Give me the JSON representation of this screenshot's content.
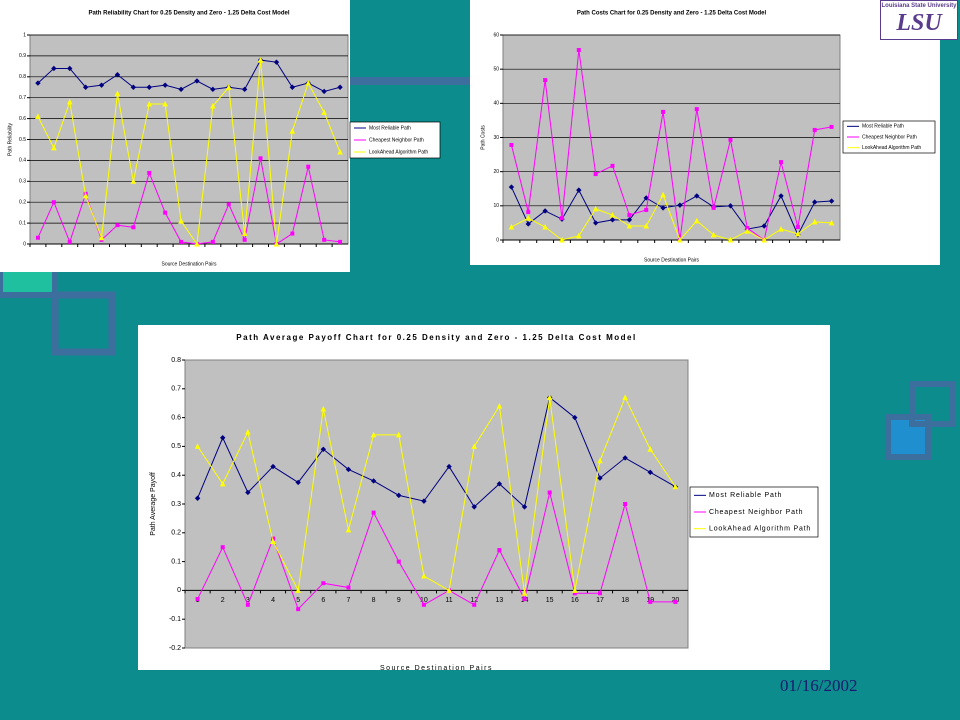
{
  "logo": {
    "university": "Louisiana State University",
    "initials": "LSU"
  },
  "footer_date": "01/16/2002",
  "chart_data": [
    {
      "type": "line",
      "title": "Path Reliability Chart for 0.25 Density and Zero - 1.25 Delta Cost Model",
      "xlabel": "Source Destination Pairs",
      "ylabel": "Path Reliability",
      "ylim": [
        0,
        1
      ],
      "yticks": [
        0,
        0.1,
        0.2,
        0.3,
        0.4,
        0.5,
        0.6,
        0.7,
        0.8,
        0.9,
        1
      ],
      "grid": true,
      "series": [
        {
          "name": "Most Reliable Path",
          "color": "#000080",
          "values": [
            0.77,
            0.84,
            0.84,
            0.75,
            0.76,
            0.81,
            0.75,
            0.75,
            0.76,
            0.74,
            0.78,
            0.74,
            0.75,
            0.74,
            0.88,
            0.87,
            0.75,
            0.77,
            0.73,
            0.75
          ]
        },
        {
          "name": "Cheapest Neighbor Path",
          "color": "#ff00ff",
          "values": [
            0.03,
            0.2,
            0.01,
            0.24,
            0.02,
            0.09,
            0.08,
            0.34,
            0.15,
            0.01,
            0,
            0.01,
            0.19,
            0.02,
            0.41,
            0,
            0.05,
            0.37,
            0.02,
            0.01
          ]
        },
        {
          "name": "LookAhead Algorithm Path",
          "color": "#ffff00",
          "values": [
            0.61,
            0.46,
            0.68,
            0.23,
            0.03,
            0.72,
            0.3,
            0.67,
            0.67,
            0.11,
            0,
            0.66,
            0.75,
            0.05,
            0.88,
            0,
            0.54,
            0.77,
            0.63,
            0.44
          ]
        }
      ]
    },
    {
      "type": "line",
      "title": "Path Costs Chart for 0.25 Density and Zero - 1.25 Delta Cost Model",
      "xlabel": "Source Destination Pairs",
      "ylabel": "Path Costs",
      "ylim": [
        0,
        60
      ],
      "yticks": [
        0,
        10,
        20,
        30,
        40,
        50,
        60
      ],
      "grid": true,
      "series": [
        {
          "name": "Most Reliable Path",
          "color": "#000080",
          "values": [
            15.5,
            4.7,
            8.5,
            6.1,
            14.6,
            5,
            5.9,
            5.9,
            12.3,
            9.4,
            10.2,
            12.9,
            9.7,
            10,
            3.2,
            4.1,
            12.9,
            1.5,
            11.1,
            11.4
          ]
        },
        {
          "name": "Cheapest Neighbor Path",
          "color": "#ff00ff",
          "values": [
            27.8,
            8.2,
            46.8,
            6.4,
            55.6,
            19.3,
            21.7,
            7.3,
            8.8,
            37.5,
            0,
            38.3,
            9.4,
            29.3,
            3.5,
            0,
            22.8,
            3.8,
            32.2,
            33.1
          ]
        },
        {
          "name": "LookAhead Algorithm Path",
          "color": "#ffff00",
          "values": [
            3.8,
            6.4,
            3.8,
            0,
            1.2,
            9.1,
            7.3,
            4.1,
            4.1,
            13.2,
            0,
            5.6,
            1.5,
            0,
            2.6,
            0,
            3.2,
            1.8,
            5.3,
            5.0
          ]
        }
      ]
    },
    {
      "type": "line",
      "title": "Path Average Payoff Chart for 0.25 Density and Zero - 1.25 Delta Cost Model",
      "xlabel": "Source Destination Pairs",
      "ylabel": "Path Average Payoff",
      "categories": [
        "1",
        "2",
        "3",
        "4",
        "5",
        "6",
        "7",
        "8",
        "9",
        "10",
        "11",
        "12",
        "13",
        "14",
        "15",
        "16",
        "17",
        "18",
        "19",
        "20"
      ],
      "ylim": [
        -0.2,
        0.8
      ],
      "yticks": [
        -0.2,
        -0.1,
        0,
        0.1,
        0.2,
        0.3,
        0.4,
        0.5,
        0.6,
        0.7,
        0.8
      ],
      "grid": false,
      "series": [
        {
          "name": "Most Reliable Path",
          "color": "#000080",
          "values": [
            0.32,
            0.53,
            0.34,
            0.43,
            0.375,
            0.49,
            0.42,
            0.38,
            0.33,
            0.31,
            0.43,
            0.29,
            0.37,
            0.29,
            0.67,
            0.6,
            0.39,
            0.46,
            0.41,
            0.36
          ]
        },
        {
          "name": "Cheapest Neighbor Path",
          "color": "#ff00ff",
          "values": [
            -0.03,
            0.15,
            -0.05,
            0.18,
            -0.065,
            0.025,
            0.01,
            0.27,
            0.1,
            -0.05,
            0,
            -0.05,
            0.14,
            -0.03,
            0.34,
            -0.01,
            -0.01,
            0.3,
            -0.04,
            -0.04
          ]
        },
        {
          "name": "LookAhead Algorithm Path",
          "color": "#ffff00",
          "values": [
            0.5,
            0.37,
            0.55,
            0.17,
            0,
            0.63,
            0.21,
            0.54,
            0.54,
            0.05,
            0,
            0.5,
            0.64,
            -0.01,
            0.67,
            0,
            0.45,
            0.67,
            0.49,
            0.36
          ]
        }
      ]
    }
  ]
}
